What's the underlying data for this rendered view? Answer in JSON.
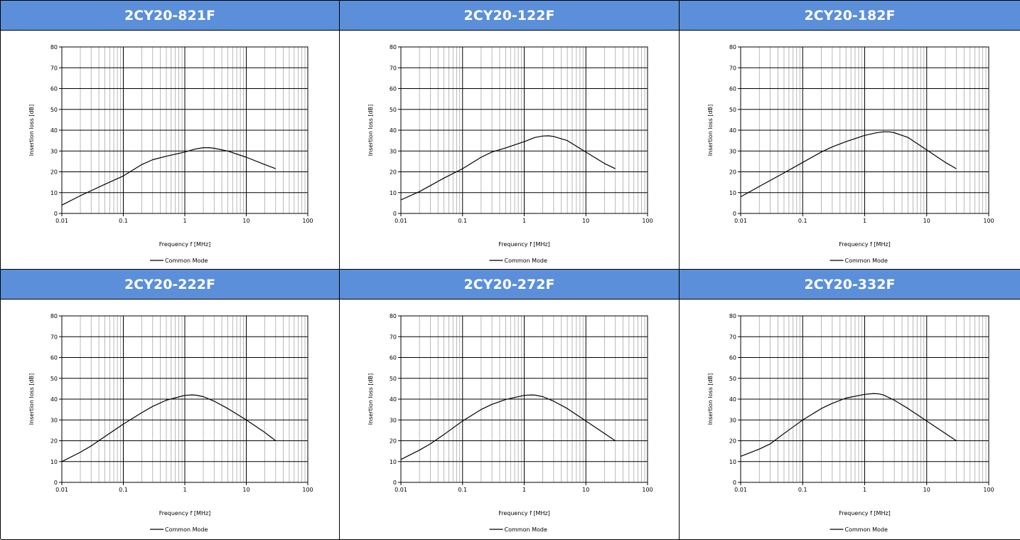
{
  "chart_data": [
    {
      "type": "line",
      "title": "2CY20-821F",
      "xlabel": "Frequency f [MHz]",
      "ylabel": "Insertion loss [dB]",
      "xscale": "log",
      "xlim": [
        0.01,
        100
      ],
      "ylim": [
        0,
        80
      ],
      "xticks": [
        "0.01",
        "0.1",
        "1",
        "10",
        "100"
      ],
      "yticks": [
        "0",
        "10",
        "20",
        "30",
        "40",
        "50",
        "60",
        "70",
        "80"
      ],
      "grid": true,
      "legend": "bottom-center",
      "series": [
        {
          "name": "Common Mode",
          "x": [
            0.01,
            0.02,
            0.05,
            0.1,
            0.2,
            0.3,
            0.5,
            1,
            1.5,
            2,
            2.5,
            3,
            5,
            10,
            20,
            30
          ],
          "y": [
            4,
            8.5,
            14,
            18,
            23.5,
            25.8,
            27.5,
            29.5,
            31,
            31.6,
            31.6,
            31.3,
            30,
            27,
            23.5,
            21.5
          ]
        }
      ]
    },
    {
      "type": "line",
      "title": "2CY20-122F",
      "xlabel": "Frequency f [MHz]",
      "ylabel": "Insertion loss [dB]",
      "xscale": "log",
      "xlim": [
        0.01,
        100
      ],
      "ylim": [
        0,
        80
      ],
      "xticks": [
        "0.01",
        "0.1",
        "1",
        "10",
        "100"
      ],
      "yticks": [
        "0",
        "10",
        "20",
        "30",
        "40",
        "50",
        "60",
        "70",
        "80"
      ],
      "grid": true,
      "legend": "bottom-center",
      "series": [
        {
          "name": "Common Mode",
          "x": [
            0.01,
            0.02,
            0.05,
            0.1,
            0.2,
            0.3,
            0.5,
            1,
            1.5,
            2,
            2.5,
            3,
            5,
            10,
            20,
            30
          ],
          "y": [
            6.5,
            10.5,
            17,
            21.5,
            27,
            29.5,
            31.5,
            34.5,
            36.5,
            37.2,
            37.3,
            37,
            35,
            29.5,
            24,
            21.5
          ]
        }
      ]
    },
    {
      "type": "line",
      "title": "2CY20-182F",
      "xlabel": "Frequency f [MHz]",
      "ylabel": "Insertion loss [dB]",
      "xscale": "log",
      "xlim": [
        0.01,
        100
      ],
      "ylim": [
        0,
        80
      ],
      "xticks": [
        "0.01",
        "0.1",
        "1",
        "10",
        "100"
      ],
      "yticks": [
        "0",
        "10",
        "20",
        "30",
        "40",
        "50",
        "60",
        "70",
        "80"
      ],
      "grid": true,
      "legend": "bottom-center",
      "series": [
        {
          "name": "Common Mode",
          "x": [
            0.01,
            0.02,
            0.05,
            0.1,
            0.2,
            0.3,
            0.5,
            1,
            1.5,
            2,
            2.5,
            3,
            5,
            10,
            20,
            30
          ],
          "y": [
            8,
            13,
            19.5,
            24.5,
            29.5,
            32,
            34.5,
            37.5,
            38.7,
            39.2,
            39.2,
            38.8,
            36.5,
            30.5,
            24.5,
            21.5
          ]
        }
      ]
    },
    {
      "type": "line",
      "title": "2CY20-222F",
      "xlabel": "Frequency f [MHz]",
      "ylabel": "Insertion loss [dB]",
      "xscale": "log",
      "xlim": [
        0.01,
        100
      ],
      "ylim": [
        0,
        80
      ],
      "xticks": [
        "0.01",
        "0.1",
        "1",
        "10",
        "100"
      ],
      "yticks": [
        "0",
        "10",
        "20",
        "30",
        "40",
        "50",
        "60",
        "70",
        "80"
      ],
      "grid": true,
      "legend": "bottom-center",
      "series": [
        {
          "name": "Common Mode",
          "x": [
            0.01,
            0.02,
            0.03,
            0.05,
            0.1,
            0.2,
            0.3,
            0.5,
            1,
            1.3,
            1.5,
            2,
            3,
            5,
            10,
            20,
            30
          ],
          "y": [
            10,
            14.5,
            17.5,
            22,
            28,
            33.5,
            36.5,
            39.5,
            41.8,
            42,
            41.9,
            41.2,
            39,
            35.5,
            30,
            24,
            20
          ]
        }
      ]
    },
    {
      "type": "line",
      "title": "2CY20-272F",
      "xlabel": "Frequency f [MHz]",
      "ylabel": "Insertion loss [dB]",
      "xscale": "log",
      "xlim": [
        0.01,
        100
      ],
      "ylim": [
        0,
        80
      ],
      "xticks": [
        "0.01",
        "0.1",
        "1",
        "10",
        "100"
      ],
      "yticks": [
        "0",
        "10",
        "20",
        "30",
        "40",
        "50",
        "60",
        "70",
        "80"
      ],
      "grid": true,
      "legend": "bottom-center",
      "series": [
        {
          "name": "Common Mode",
          "x": [
            0.01,
            0.02,
            0.03,
            0.05,
            0.1,
            0.2,
            0.3,
            0.5,
            1,
            1.3,
            1.5,
            2,
            3,
            5,
            10,
            20,
            30
          ],
          "y": [
            11,
            15.5,
            18.5,
            23,
            29.5,
            35,
            37.5,
            39.8,
            41.8,
            42,
            41.9,
            41.2,
            39,
            35.5,
            29.5,
            23.5,
            20
          ]
        }
      ]
    },
    {
      "type": "line",
      "title": "2CY20-332F",
      "xlabel": "Frequency f [MHz]",
      "ylabel": "Insertion loss [dB]",
      "xscale": "log",
      "xlim": [
        0.01,
        100
      ],
      "ylim": [
        0,
        80
      ],
      "xticks": [
        "0.01",
        "0.1",
        "1",
        "10",
        "100"
      ],
      "yticks": [
        "0",
        "10",
        "20",
        "30",
        "40",
        "50",
        "60",
        "70",
        "80"
      ],
      "grid": true,
      "legend": "bottom-center",
      "series": [
        {
          "name": "Common Mode",
          "x": [
            0.01,
            0.02,
            0.03,
            0.05,
            0.1,
            0.2,
            0.3,
            0.5,
            1,
            1.4,
            1.7,
            2,
            3,
            5,
            10,
            20,
            30
          ],
          "y": [
            12.5,
            16,
            18.5,
            23.5,
            30,
            35.5,
            38,
            40.5,
            42.3,
            42.7,
            42.5,
            42,
            39.5,
            35.5,
            29.5,
            23.5,
            20
          ]
        }
      ]
    }
  ]
}
